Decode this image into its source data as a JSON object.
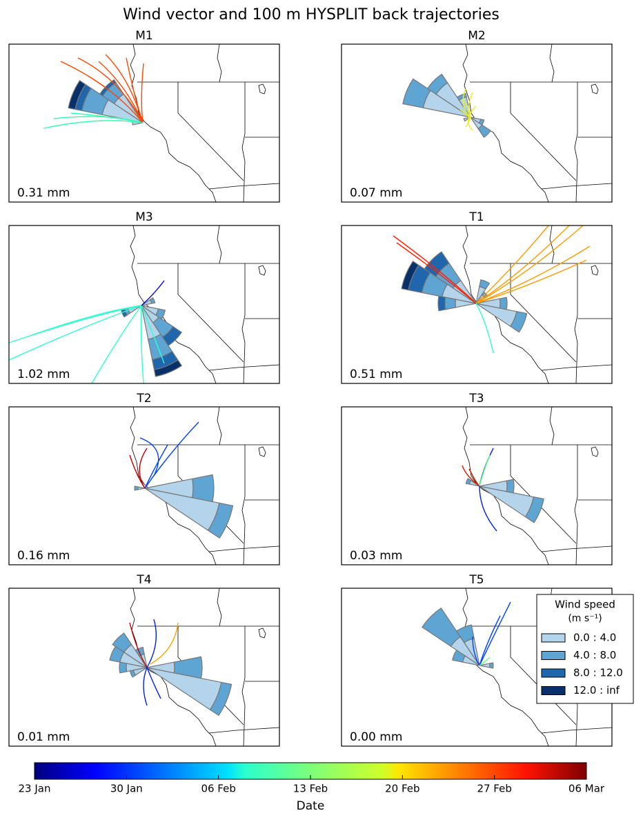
{
  "chart_data": {
    "type": "windrose",
    "title": "Wind vector and 100 m HYSPLIT back trajectories",
    "panels": [
      {
        "title": "M1",
        "label": "0.31 mm",
        "petals": [
          {
            "dir": 292.5,
            "values": [
              12,
              6,
              2,
              2
            ]
          },
          {
            "dir": 315,
            "values": [
              10,
              4,
              1,
              0
            ]
          },
          {
            "dir": 270,
            "values": [
              3,
              0,
              0,
              0
            ]
          }
        ]
      },
      {
        "title": "M2",
        "label": "0.07 mm",
        "petals": [
          {
            "dir": 292.5,
            "values": [
              14,
              6,
              0,
              0
            ]
          },
          {
            "dir": 315,
            "values": [
              12,
              3,
              0,
              0
            ]
          },
          {
            "dir": 337.5,
            "values": [
              6,
              1,
              0,
              0
            ]
          },
          {
            "dir": 135,
            "values": [
              4,
              3,
              0,
              0
            ]
          },
          {
            "dir": 112.5,
            "values": [
              3,
              1,
              0,
              0
            ]
          },
          {
            "dir": 247.5,
            "values": [
              2,
              0,
              0,
              0
            ]
          }
        ]
      },
      {
        "title": "M3",
        "label": "1.02 mm",
        "petals": [
          {
            "dir": 157.5,
            "values": [
              10,
              6,
              3,
              2
            ]
          },
          {
            "dir": 135,
            "values": [
              6,
              5,
              3,
              0
            ]
          },
          {
            "dir": 112.5,
            "values": [
              5,
              2,
              0,
              0
            ]
          },
          {
            "dir": 247.5,
            "values": [
              4,
              1,
              1,
              0
            ]
          },
          {
            "dir": 67.5,
            "values": [
              3,
              1,
              0,
              0
            ]
          }
        ]
      },
      {
        "title": "T1",
        "label": "0.51 mm",
        "petals": [
          {
            "dir": 292.5,
            "values": [
              10,
              6,
              4,
              2
            ]
          },
          {
            "dir": 315,
            "values": [
              8,
              6,
              4,
              0
            ]
          },
          {
            "dir": 270,
            "values": [
              6,
              3,
              2,
              0
            ]
          },
          {
            "dir": 112.5,
            "values": [
              12,
              3,
              0,
              0
            ]
          },
          {
            "dir": 90,
            "values": [
              7,
              2,
              0,
              0
            ]
          },
          {
            "dir": 22.5,
            "values": [
              5,
              2,
              0,
              0
            ]
          },
          {
            "dir": 45,
            "values": [
              3,
              1,
              0,
              0
            ]
          }
        ]
      },
      {
        "title": "T2",
        "label": "0.16 mm",
        "petals": [
          {
            "dir": 112.5,
            "values": [
              22,
              4,
              0,
              0
            ]
          },
          {
            "dir": 90,
            "values": [
              14,
              6,
              0,
              0
            ]
          },
          {
            "dir": 270,
            "values": [
              2,
              1,
              0,
              0
            ]
          }
        ]
      },
      {
        "title": "T3",
        "label": "0.03 mm",
        "petals": [
          {
            "dir": 112.5,
            "values": [
              16,
              3,
              0,
              0
            ]
          },
          {
            "dir": 90,
            "values": [
              8,
              2,
              0,
              0
            ]
          },
          {
            "dir": 292.5,
            "values": [
              3,
              1,
              0,
              0
            ]
          }
        ]
      },
      {
        "title": "T4",
        "label": "0.01 mm",
        "petals": [
          {
            "dir": 112.5,
            "values": [
              22,
              3,
              0,
              0
            ]
          },
          {
            "dir": 90,
            "values": [
              8,
              8,
              0,
              0
            ]
          },
          {
            "dir": 292.5,
            "values": [
              8,
              3,
              0,
              0
            ]
          },
          {
            "dir": 315,
            "values": [
              8,
              4,
              0,
              0
            ]
          },
          {
            "dir": 270,
            "values": [
              6,
              2,
              0,
              0
            ]
          },
          {
            "dir": 337.5,
            "values": [
              4,
              2,
              0,
              0
            ]
          },
          {
            "dir": 247.5,
            "values": [
              4,
              1,
              0,
              0
            ]
          }
        ]
      },
      {
        "title": "T5",
        "label": "0.00 mm",
        "petals": [
          {
            "dir": 315,
            "values": [
              10,
              10,
              0,
              0
            ]
          },
          {
            "dir": 337.5,
            "values": [
              8,
              4,
              0,
              0
            ]
          },
          {
            "dir": 292.5,
            "values": [
              5,
              3,
              0,
              0
            ]
          },
          {
            "dir": 90,
            "values": [
              3,
              1,
              0,
              0
            ]
          }
        ]
      }
    ],
    "legend": {
      "title": "Wind speed",
      "units": "(m s⁻¹)",
      "entries": [
        {
          "label": "0.0 : 4.0",
          "color": "#b3d4ea"
        },
        {
          "label": "4.0 : 8.0",
          "color": "#5ea5d4"
        },
        {
          "label": "8.0 : 12.0",
          "color": "#1f66ac"
        },
        {
          "label": "12.0 : inf",
          "color": "#08306b"
        }
      ]
    },
    "colorbar": {
      "label": "Date",
      "ticks": [
        "23 Jan",
        "30 Jan",
        "06 Feb",
        "13 Feb",
        "20 Feb",
        "27 Feb",
        "06 Mar"
      ]
    }
  }
}
